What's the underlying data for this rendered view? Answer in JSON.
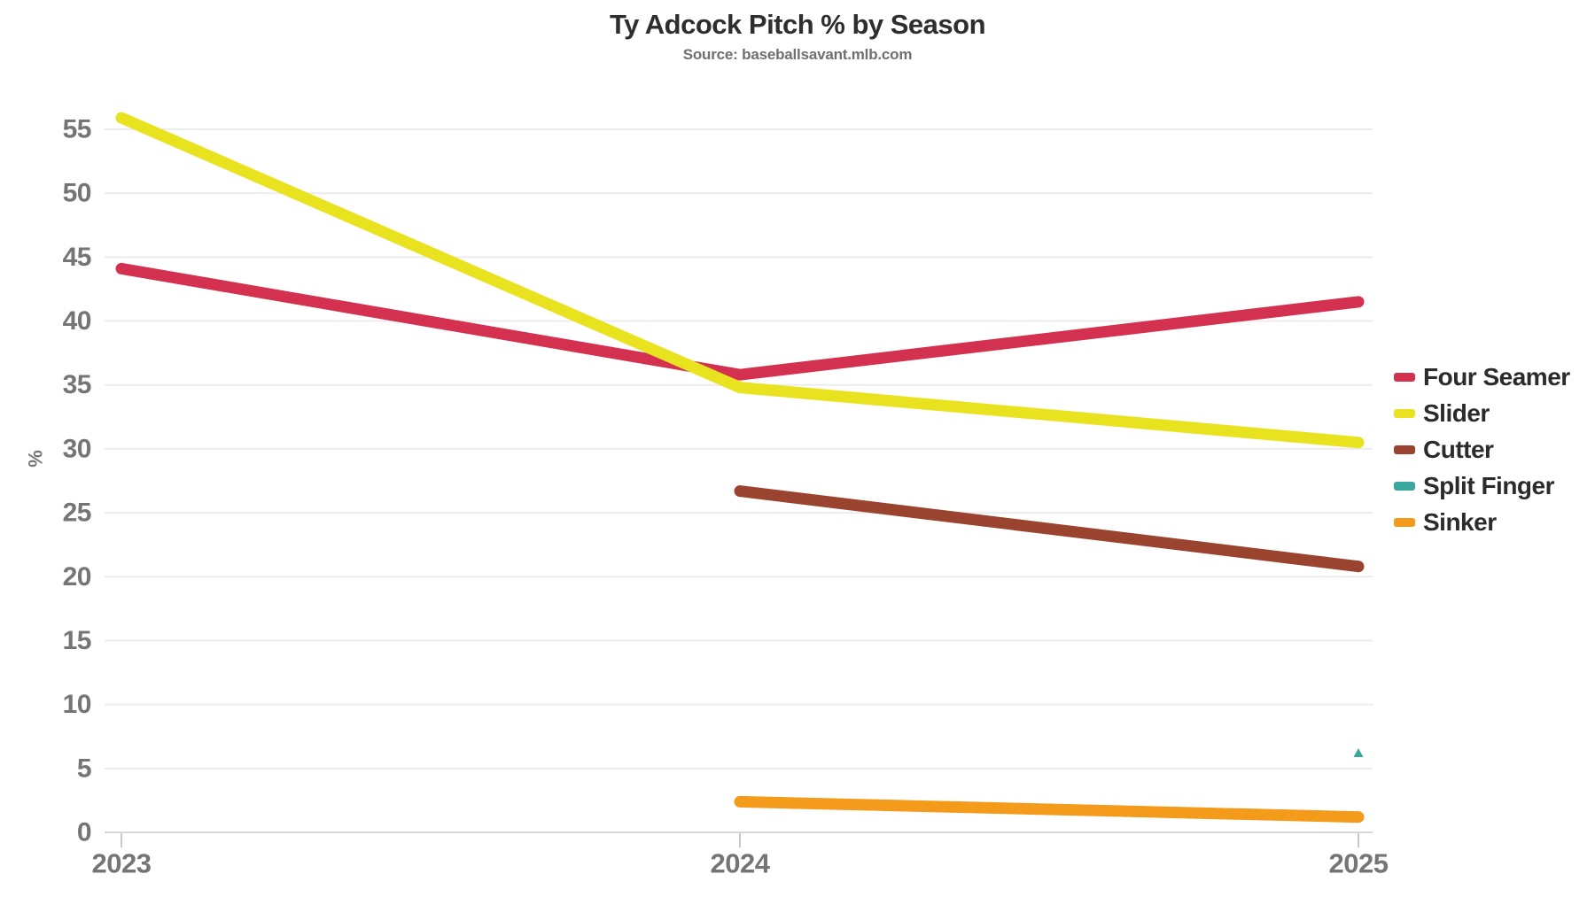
{
  "header": {
    "title": "Ty Adcock Pitch % by Season",
    "subtitle": "Source: baseballsavant.mlb.com"
  },
  "chart_data": {
    "type": "line",
    "title": "Ty Adcock Pitch % by Season",
    "subtitle": "Source: baseballsavant.mlb.com",
    "xlabel": "",
    "ylabel": "%",
    "categories": [
      "2023",
      "2024",
      "2025"
    ],
    "series": [
      {
        "name": "Four Seamer",
        "color": "#d4304f",
        "values": [
          44.1,
          35.8,
          41.5
        ]
      },
      {
        "name": "Slider",
        "color": "#e9e31f",
        "values": [
          55.9,
          34.8,
          30.5
        ]
      },
      {
        "name": "Cutter",
        "color": "#9a4430",
        "values": [
          null,
          26.7,
          20.8
        ]
      },
      {
        "name": "Split Finger",
        "color": "#3aa79f",
        "values": [
          null,
          null,
          6.2
        ],
        "marker": "triangle"
      },
      {
        "name": "Sinker",
        "color": "#f59b1c",
        "values": [
          null,
          2.4,
          1.2
        ]
      }
    ],
    "yticks": [
      0,
      5,
      10,
      15,
      20,
      25,
      30,
      35,
      40,
      45,
      50,
      55
    ],
    "ylim": [
      0,
      58
    ],
    "grid": true,
    "legend_position": "right",
    "colors": {
      "axis_label": "#757575",
      "gridline": "#ececec",
      "baseline": "#d8d8d8",
      "tick": "#c9c9c9",
      "title": "#2e2e2e",
      "subtitle": "#6f6f6f",
      "legend_text": "#2b2b2b"
    }
  }
}
